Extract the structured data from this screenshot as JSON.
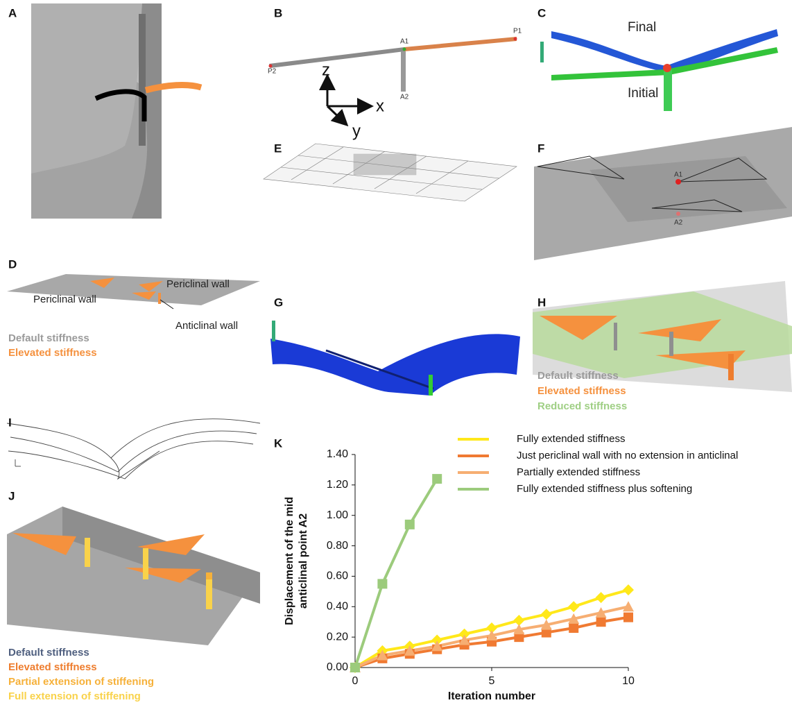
{
  "panel_labels": [
    "A",
    "B",
    "C",
    "D",
    "E",
    "F",
    "G",
    "H",
    "I",
    "J",
    "K"
  ],
  "panel_b": {
    "points": [
      "P2",
      "A1",
      "P1",
      "A2"
    ],
    "axes": [
      "z",
      "x",
      "y"
    ]
  },
  "panel_c": {
    "final": "Final",
    "initial": "Initial"
  },
  "panel_d": {
    "walls": [
      "Periclinal wall",
      "Periclinal wall",
      "Anticlinal wall"
    ],
    "legend": [
      "Default stiffness",
      "Elevated stiffness"
    ]
  },
  "panel_f": {
    "points": [
      "A1",
      "A2"
    ]
  },
  "panel_h": {
    "legend": [
      "Default stiffness",
      "Elevated stiffness",
      "Reduced stiffness"
    ]
  },
  "panel_j": {
    "legend": [
      "Default stiffness",
      "Elevated stiffness",
      "Partial extension of stiffening",
      "Full extension of stiffening"
    ]
  },
  "chart_data": {
    "type": "line",
    "xlabel": "Iteration number",
    "ylabel": [
      "Displacement of the mid",
      "anticlinal point A2"
    ],
    "xlim": [
      0,
      10
    ],
    "ylim": [
      0,
      1.4
    ],
    "xticks": [
      0,
      5,
      10
    ],
    "yticks": [
      {
        "value": 0,
        "label": "0.00"
      },
      {
        "value": 0.2,
        "label": "0.20"
      },
      {
        "value": 0.4,
        "label": "0.40"
      },
      {
        "value": 0.6,
        "label": "0.60"
      },
      {
        "value": 0.8,
        "label": "0.80"
      },
      {
        "value": 1.0,
        "label": "1.00"
      },
      {
        "value": 1.2,
        "label": "1.20"
      },
      {
        "value": 1.4,
        "label": "1.40"
      }
    ],
    "series": [
      {
        "name": "Fully extended stiffness",
        "color": "#ffe81a",
        "marker": "diamond",
        "x": [
          0,
          1,
          2,
          3,
          4,
          5,
          6,
          7,
          8,
          9,
          10
        ],
        "values": [
          0,
          0.11,
          0.14,
          0.18,
          0.22,
          0.26,
          0.31,
          0.35,
          0.4,
          0.46,
          0.51
        ]
      },
      {
        "name": "Just periclinal wall with no extension in anticlinal",
        "color": "#f07a32",
        "marker": "square",
        "x": [
          0,
          1,
          2,
          3,
          4,
          5,
          6,
          7,
          8,
          9,
          10
        ],
        "values": [
          0,
          0.06,
          0.09,
          0.12,
          0.15,
          0.17,
          0.2,
          0.23,
          0.26,
          0.3,
          0.33
        ]
      },
      {
        "name": "Partially extended stiffness",
        "color": "#f6ae72",
        "marker": "triangle",
        "x": [
          0,
          1,
          2,
          3,
          4,
          5,
          6,
          7,
          8,
          9,
          10
        ],
        "values": [
          0,
          0.08,
          0.11,
          0.14,
          0.18,
          0.21,
          0.25,
          0.28,
          0.32,
          0.36,
          0.4
        ]
      },
      {
        "name": "Fully extended stiffness plus softening",
        "color": "#9ccb7c",
        "marker": "square",
        "x": [
          0,
          1,
          2,
          3
        ],
        "values": [
          0,
          0.55,
          0.94,
          1.24
        ]
      }
    ]
  }
}
